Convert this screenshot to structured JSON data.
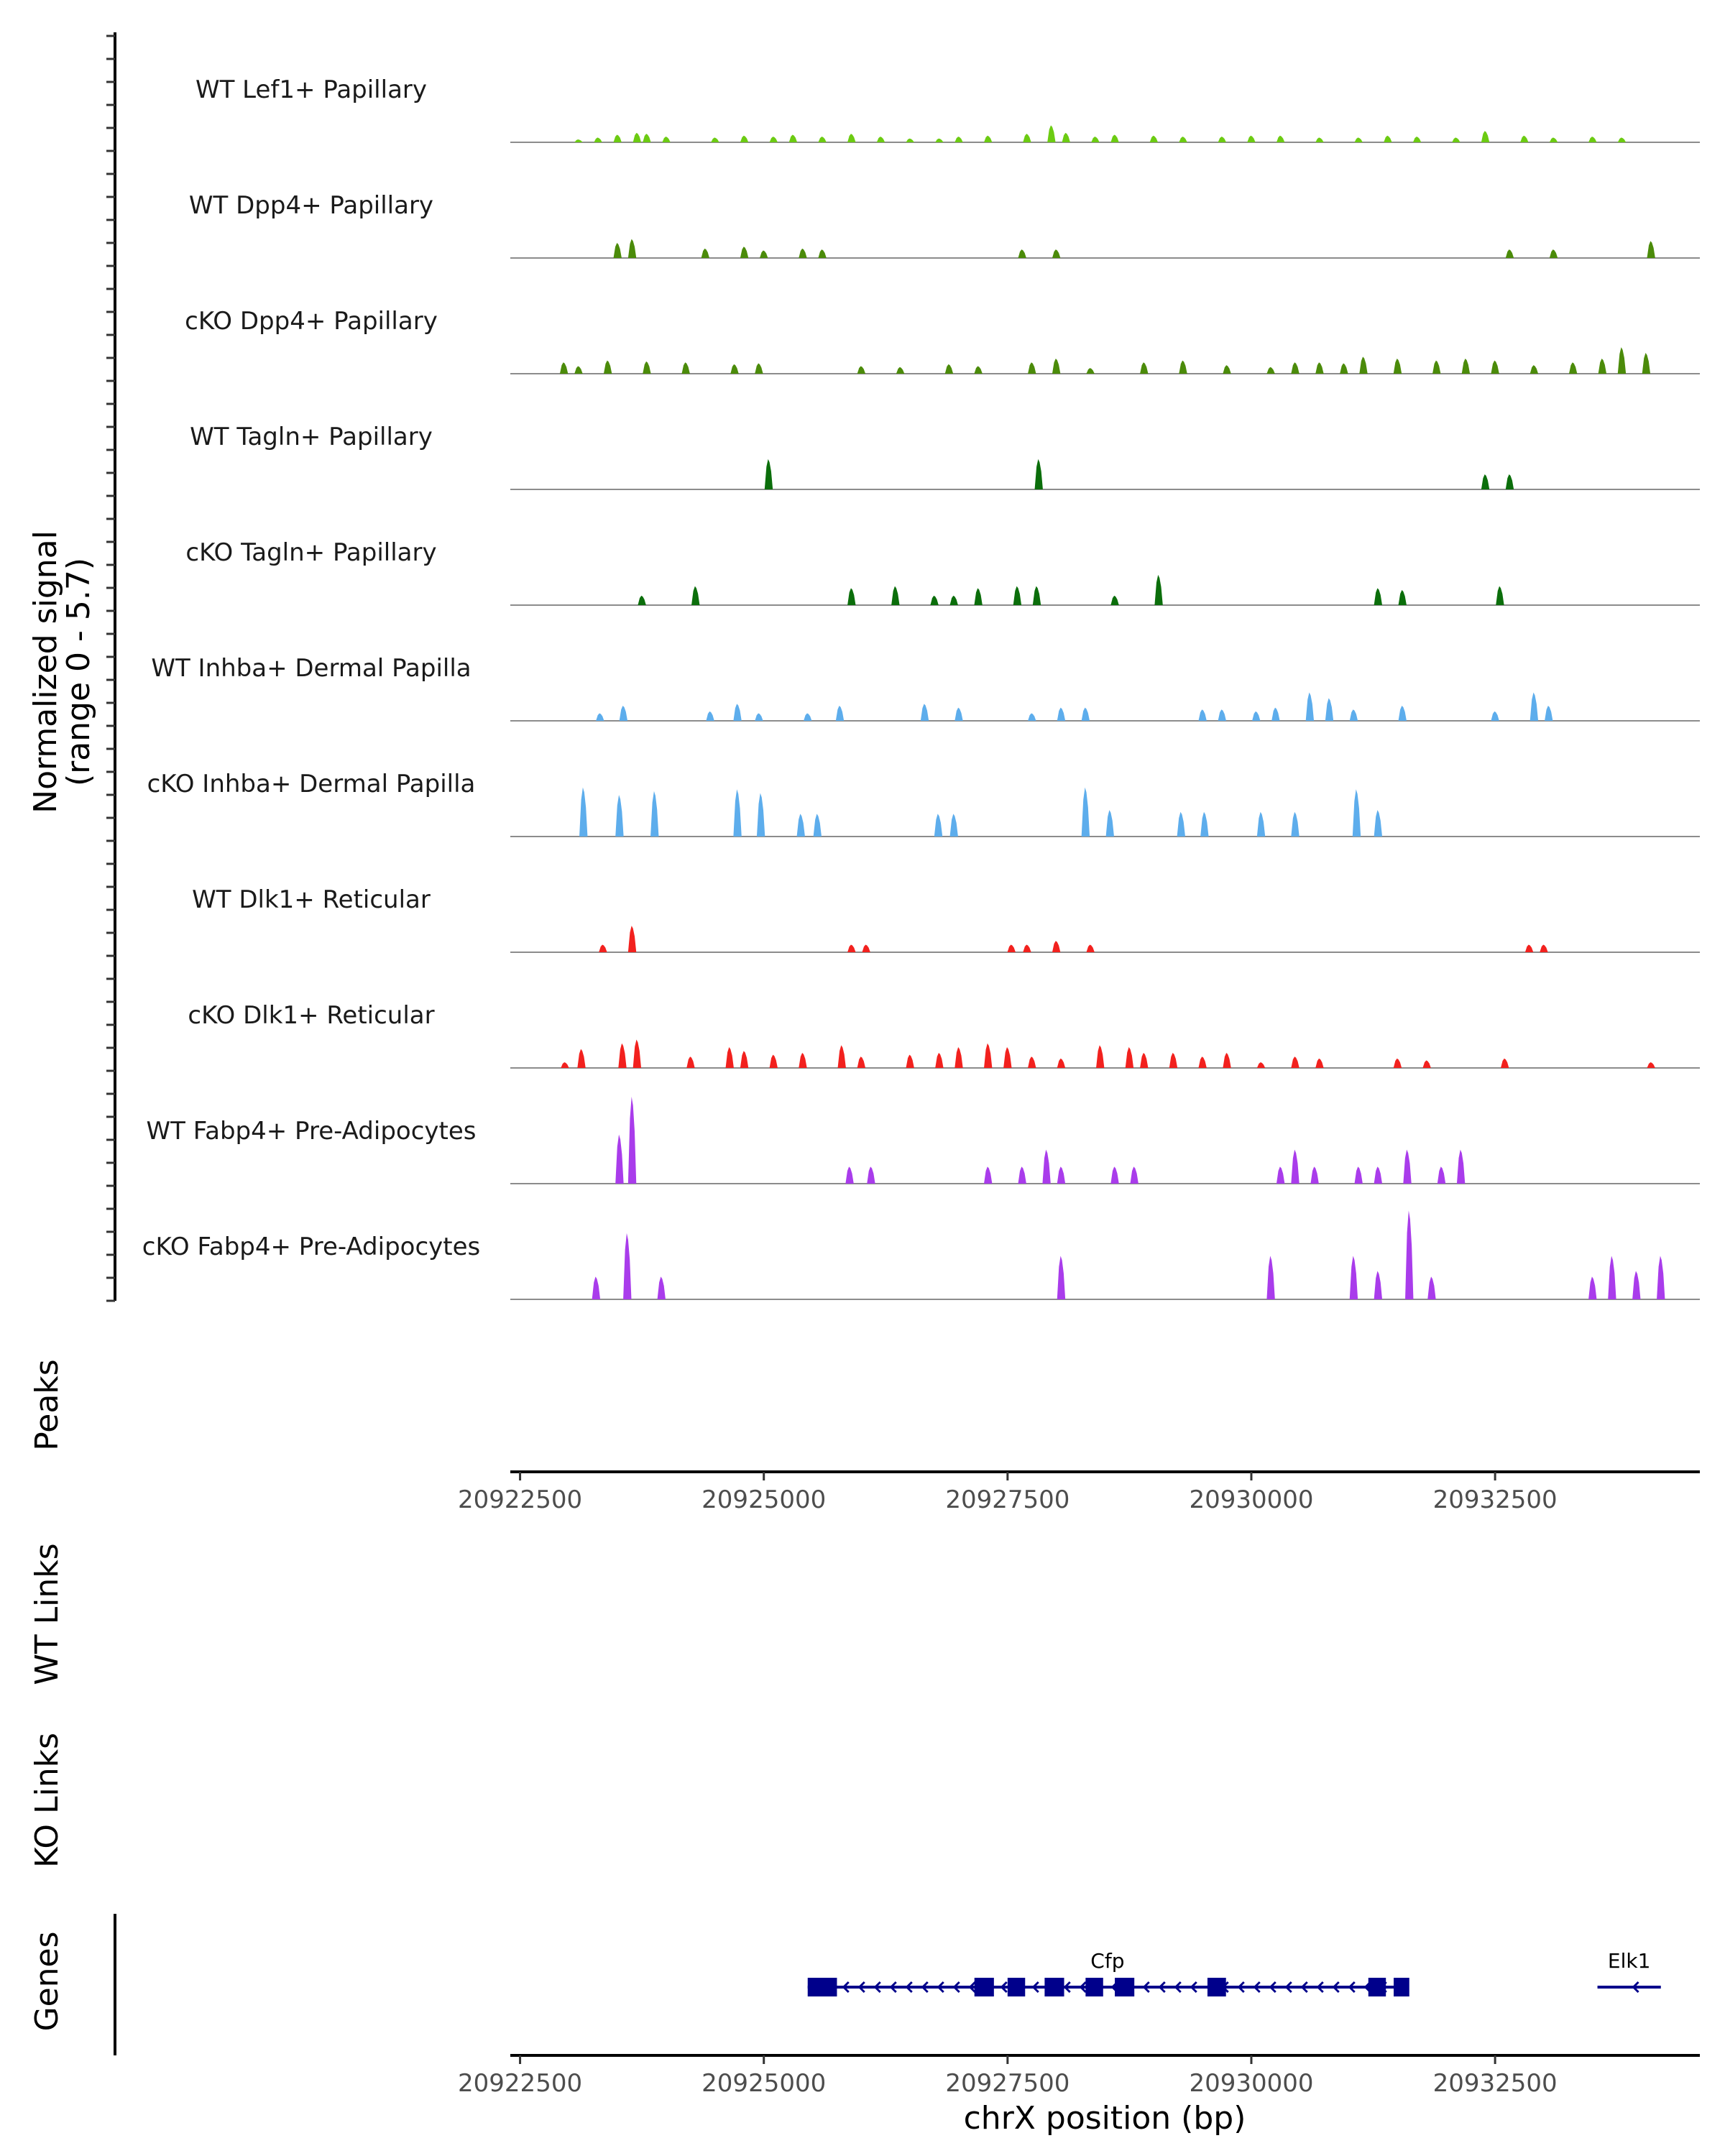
{
  "chart_data": {
    "type": "area",
    "region": "chrX",
    "xlim": [
      20922400,
      20934600
    ],
    "x_ticks": [
      20922500,
      20925000,
      20927500,
      20930000,
      20932500
    ],
    "x_tick_labels": [
      "20922500",
      "20925000",
      "20927500",
      "20930000",
      "20932500"
    ],
    "xlabel": "chrX position (bp)",
    "ylabel_line1": "Normalized signal",
    "ylabel_line2": "(range 0 - 5.7)",
    "ylim": [
      0,
      5.7
    ],
    "side_labels": {
      "peaks": "Peaks",
      "wt_links": "WT Links",
      "ko_links": "KO Links",
      "genes": "Genes"
    },
    "series": [
      {
        "name": "WT Lef1+ Papillary",
        "color": "#6CCB12",
        "points": [
          [
            20923100,
            0.15
          ],
          [
            20923300,
            0.25
          ],
          [
            20923500,
            0.4
          ],
          [
            20923700,
            0.5
          ],
          [
            20923800,
            0.45
          ],
          [
            20924000,
            0.3
          ],
          [
            20924500,
            0.25
          ],
          [
            20924800,
            0.35
          ],
          [
            20925100,
            0.3
          ],
          [
            20925300,
            0.4
          ],
          [
            20925600,
            0.3
          ],
          [
            20925900,
            0.45
          ],
          [
            20926200,
            0.3
          ],
          [
            20926500,
            0.2
          ],
          [
            20926800,
            0.2
          ],
          [
            20927000,
            0.3
          ],
          [
            20927300,
            0.35
          ],
          [
            20927700,
            0.45
          ],
          [
            20927950,
            0.9
          ],
          [
            20928100,
            0.5
          ],
          [
            20928400,
            0.3
          ],
          [
            20928600,
            0.4
          ],
          [
            20929000,
            0.35
          ],
          [
            20929300,
            0.3
          ],
          [
            20929700,
            0.3
          ],
          [
            20930000,
            0.35
          ],
          [
            20930300,
            0.35
          ],
          [
            20930700,
            0.25
          ],
          [
            20931100,
            0.25
          ],
          [
            20931400,
            0.35
          ],
          [
            20931700,
            0.3
          ],
          [
            20932100,
            0.25
          ],
          [
            20932400,
            0.6
          ],
          [
            20932800,
            0.35
          ],
          [
            20933100,
            0.25
          ],
          [
            20933500,
            0.3
          ],
          [
            20933800,
            0.25
          ]
        ]
      },
      {
        "name": "WT Dpp4+ Papillary",
        "color": "#4B8B0A",
        "points": [
          [
            20923500,
            0.8
          ],
          [
            20923650,
            1.0
          ],
          [
            20924400,
            0.5
          ],
          [
            20924800,
            0.6
          ],
          [
            20925000,
            0.4
          ],
          [
            20925400,
            0.5
          ],
          [
            20925600,
            0.45
          ],
          [
            20927650,
            0.45
          ],
          [
            20928000,
            0.45
          ],
          [
            20932650,
            0.45
          ],
          [
            20933100,
            0.45
          ],
          [
            20934100,
            0.9
          ]
        ]
      },
      {
        "name": "cKO Dpp4+ Papillary",
        "color": "#4B8B0A",
        "points": [
          [
            20922950,
            0.6
          ],
          [
            20923100,
            0.4
          ],
          [
            20923400,
            0.7
          ],
          [
            20923800,
            0.65
          ],
          [
            20924200,
            0.6
          ],
          [
            20924700,
            0.5
          ],
          [
            20924950,
            0.55
          ],
          [
            20926000,
            0.4
          ],
          [
            20926400,
            0.35
          ],
          [
            20926900,
            0.5
          ],
          [
            20927200,
            0.4
          ],
          [
            20927750,
            0.6
          ],
          [
            20928000,
            0.8
          ],
          [
            20928350,
            0.3
          ],
          [
            20928900,
            0.6
          ],
          [
            20929300,
            0.7
          ],
          [
            20929750,
            0.45
          ],
          [
            20930200,
            0.35
          ],
          [
            20930450,
            0.6
          ],
          [
            20930700,
            0.6
          ],
          [
            20930950,
            0.55
          ],
          [
            20931150,
            0.9
          ],
          [
            20931500,
            0.8
          ],
          [
            20931900,
            0.7
          ],
          [
            20932200,
            0.8
          ],
          [
            20932500,
            0.7
          ],
          [
            20932900,
            0.45
          ],
          [
            20933300,
            0.6
          ],
          [
            20933600,
            0.8
          ],
          [
            20933800,
            1.4
          ],
          [
            20934050,
            1.1
          ]
        ]
      },
      {
        "name": "WT Tagln+ Papillary",
        "color": "#0B6E0B",
        "points": [
          [
            20925050,
            1.6
          ],
          [
            20927820,
            1.6
          ],
          [
            20932400,
            0.8
          ],
          [
            20932650,
            0.8
          ]
        ]
      },
      {
        "name": "cKO Tagln+ Papillary",
        "color": "#0B6E0B",
        "points": [
          [
            20923750,
            0.5
          ],
          [
            20924300,
            1.0
          ],
          [
            20925900,
            0.9
          ],
          [
            20926350,
            1.0
          ],
          [
            20926750,
            0.5
          ],
          [
            20926950,
            0.5
          ],
          [
            20927200,
            0.9
          ],
          [
            20927600,
            1.0
          ],
          [
            20927800,
            1.0
          ],
          [
            20928600,
            0.5
          ],
          [
            20929050,
            1.6
          ],
          [
            20931300,
            0.9
          ],
          [
            20931550,
            0.8
          ],
          [
            20932550,
            1.0
          ]
        ]
      },
      {
        "name": "WT Inhba+ Dermal Papilla",
        "color": "#5DADEC",
        "points": [
          [
            20923320,
            0.4
          ],
          [
            20923560,
            0.8
          ],
          [
            20924450,
            0.5
          ],
          [
            20924730,
            0.9
          ],
          [
            20924950,
            0.4
          ],
          [
            20925450,
            0.4
          ],
          [
            20925780,
            0.8
          ],
          [
            20926650,
            0.9
          ],
          [
            20927000,
            0.7
          ],
          [
            20927750,
            0.4
          ],
          [
            20928050,
            0.7
          ],
          [
            20928300,
            0.7
          ],
          [
            20929500,
            0.6
          ],
          [
            20929700,
            0.6
          ],
          [
            20930050,
            0.5
          ],
          [
            20930250,
            0.7
          ],
          [
            20930600,
            1.5
          ],
          [
            20930800,
            1.2
          ],
          [
            20931050,
            0.6
          ],
          [
            20931550,
            0.8
          ],
          [
            20932500,
            0.5
          ],
          [
            20932900,
            1.5
          ],
          [
            20933050,
            0.8
          ]
        ]
      },
      {
        "name": "cKO Inhba+ Dermal Papilla",
        "color": "#5DADEC",
        "points": [
          [
            20923150,
            2.6
          ],
          [
            20923520,
            2.2
          ],
          [
            20923880,
            2.4
          ],
          [
            20924730,
            2.5
          ],
          [
            20924970,
            2.3
          ],
          [
            20925380,
            1.2
          ],
          [
            20925550,
            1.2
          ],
          [
            20926790,
            1.2
          ],
          [
            20926950,
            1.2
          ],
          [
            20928300,
            2.6
          ],
          [
            20928550,
            1.4
          ],
          [
            20929280,
            1.3
          ],
          [
            20929520,
            1.3
          ],
          [
            20930100,
            1.3
          ],
          [
            20930450,
            1.3
          ],
          [
            20931080,
            2.5
          ],
          [
            20931300,
            1.4
          ]
        ]
      },
      {
        "name": "WT Dlk1+ Reticular",
        "color": "#F2211E",
        "points": [
          [
            20923350,
            0.4
          ],
          [
            20923650,
            1.4
          ],
          [
            20925900,
            0.4
          ],
          [
            20926050,
            0.4
          ],
          [
            20927540,
            0.4
          ],
          [
            20927700,
            0.4
          ],
          [
            20928000,
            0.6
          ],
          [
            20928350,
            0.4
          ],
          [
            20932850,
            0.4
          ],
          [
            20933000,
            0.4
          ]
        ]
      },
      {
        "name": "cKO Dlk1+ Reticular",
        "color": "#F2211E",
        "points": [
          [
            20922960,
            0.3
          ],
          [
            20923130,
            1.0
          ],
          [
            20923550,
            1.3
          ],
          [
            20923700,
            1.5
          ],
          [
            20924250,
            0.6
          ],
          [
            20924650,
            1.1
          ],
          [
            20924800,
            0.9
          ],
          [
            20925100,
            0.7
          ],
          [
            20925400,
            0.8
          ],
          [
            20925800,
            1.2
          ],
          [
            20926000,
            0.6
          ],
          [
            20926500,
            0.7
          ],
          [
            20926800,
            0.8
          ],
          [
            20927000,
            1.1
          ],
          [
            20927300,
            1.3
          ],
          [
            20927500,
            1.1
          ],
          [
            20927750,
            0.6
          ],
          [
            20928050,
            0.5
          ],
          [
            20928450,
            1.2
          ],
          [
            20928750,
            1.1
          ],
          [
            20928900,
            0.8
          ],
          [
            20929200,
            0.8
          ],
          [
            20929500,
            0.6
          ],
          [
            20929750,
            0.8
          ],
          [
            20930100,
            0.3
          ],
          [
            20930450,
            0.6
          ],
          [
            20930700,
            0.5
          ],
          [
            20931500,
            0.5
          ],
          [
            20931800,
            0.4
          ],
          [
            20932600,
            0.5
          ],
          [
            20934100,
            0.3
          ]
        ]
      },
      {
        "name": "WT Fabp4+ Pre-Adipocytes",
        "color": "#A93CEB",
        "points": [
          [
            20923520,
            2.6
          ],
          [
            20923650,
            4.6
          ],
          [
            20925880,
            0.9
          ],
          [
            20926100,
            0.9
          ],
          [
            20927300,
            0.9
          ],
          [
            20927650,
            0.9
          ],
          [
            20927900,
            1.8
          ],
          [
            20928050,
            0.9
          ],
          [
            20928600,
            0.9
          ],
          [
            20928800,
            0.9
          ],
          [
            20930300,
            0.9
          ],
          [
            20930450,
            1.8
          ],
          [
            20930650,
            0.9
          ],
          [
            20931100,
            0.9
          ],
          [
            20931300,
            0.9
          ],
          [
            20931600,
            1.8
          ],
          [
            20931950,
            0.9
          ],
          [
            20932150,
            1.8
          ]
        ]
      },
      {
        "name": "cKO Fabp4+ Pre-Adipocytes",
        "color": "#A93CEB",
        "points": [
          [
            20923280,
            1.2
          ],
          [
            20923600,
            3.5
          ],
          [
            20923950,
            1.2
          ],
          [
            20928050,
            2.3
          ],
          [
            20930200,
            2.3
          ],
          [
            20931050,
            2.3
          ],
          [
            20931300,
            1.5
          ],
          [
            20931620,
            4.7
          ],
          [
            20931850,
            1.2
          ],
          [
            20933500,
            1.2
          ],
          [
            20933700,
            2.3
          ],
          [
            20933950,
            1.5
          ],
          [
            20934200,
            2.3
          ]
        ]
      }
    ],
    "genes": [
      {
        "name": "Cfp",
        "start": 20925450,
        "end": 20931600,
        "strand": "-",
        "exons": [
          [
            20925450,
            20925750
          ],
          [
            20927160,
            20927360
          ],
          [
            20927500,
            20927680
          ],
          [
            20927880,
            20928080
          ],
          [
            20928300,
            20928480
          ],
          [
            20928600,
            20928800
          ],
          [
            20929550,
            20929740
          ],
          [
            20931200,
            20931380
          ],
          [
            20931460,
            20931620
          ]
        ]
      },
      {
        "name": "Elk1",
        "start": 20933550,
        "end": 20934200,
        "strand": "-",
        "exons": []
      }
    ]
  }
}
